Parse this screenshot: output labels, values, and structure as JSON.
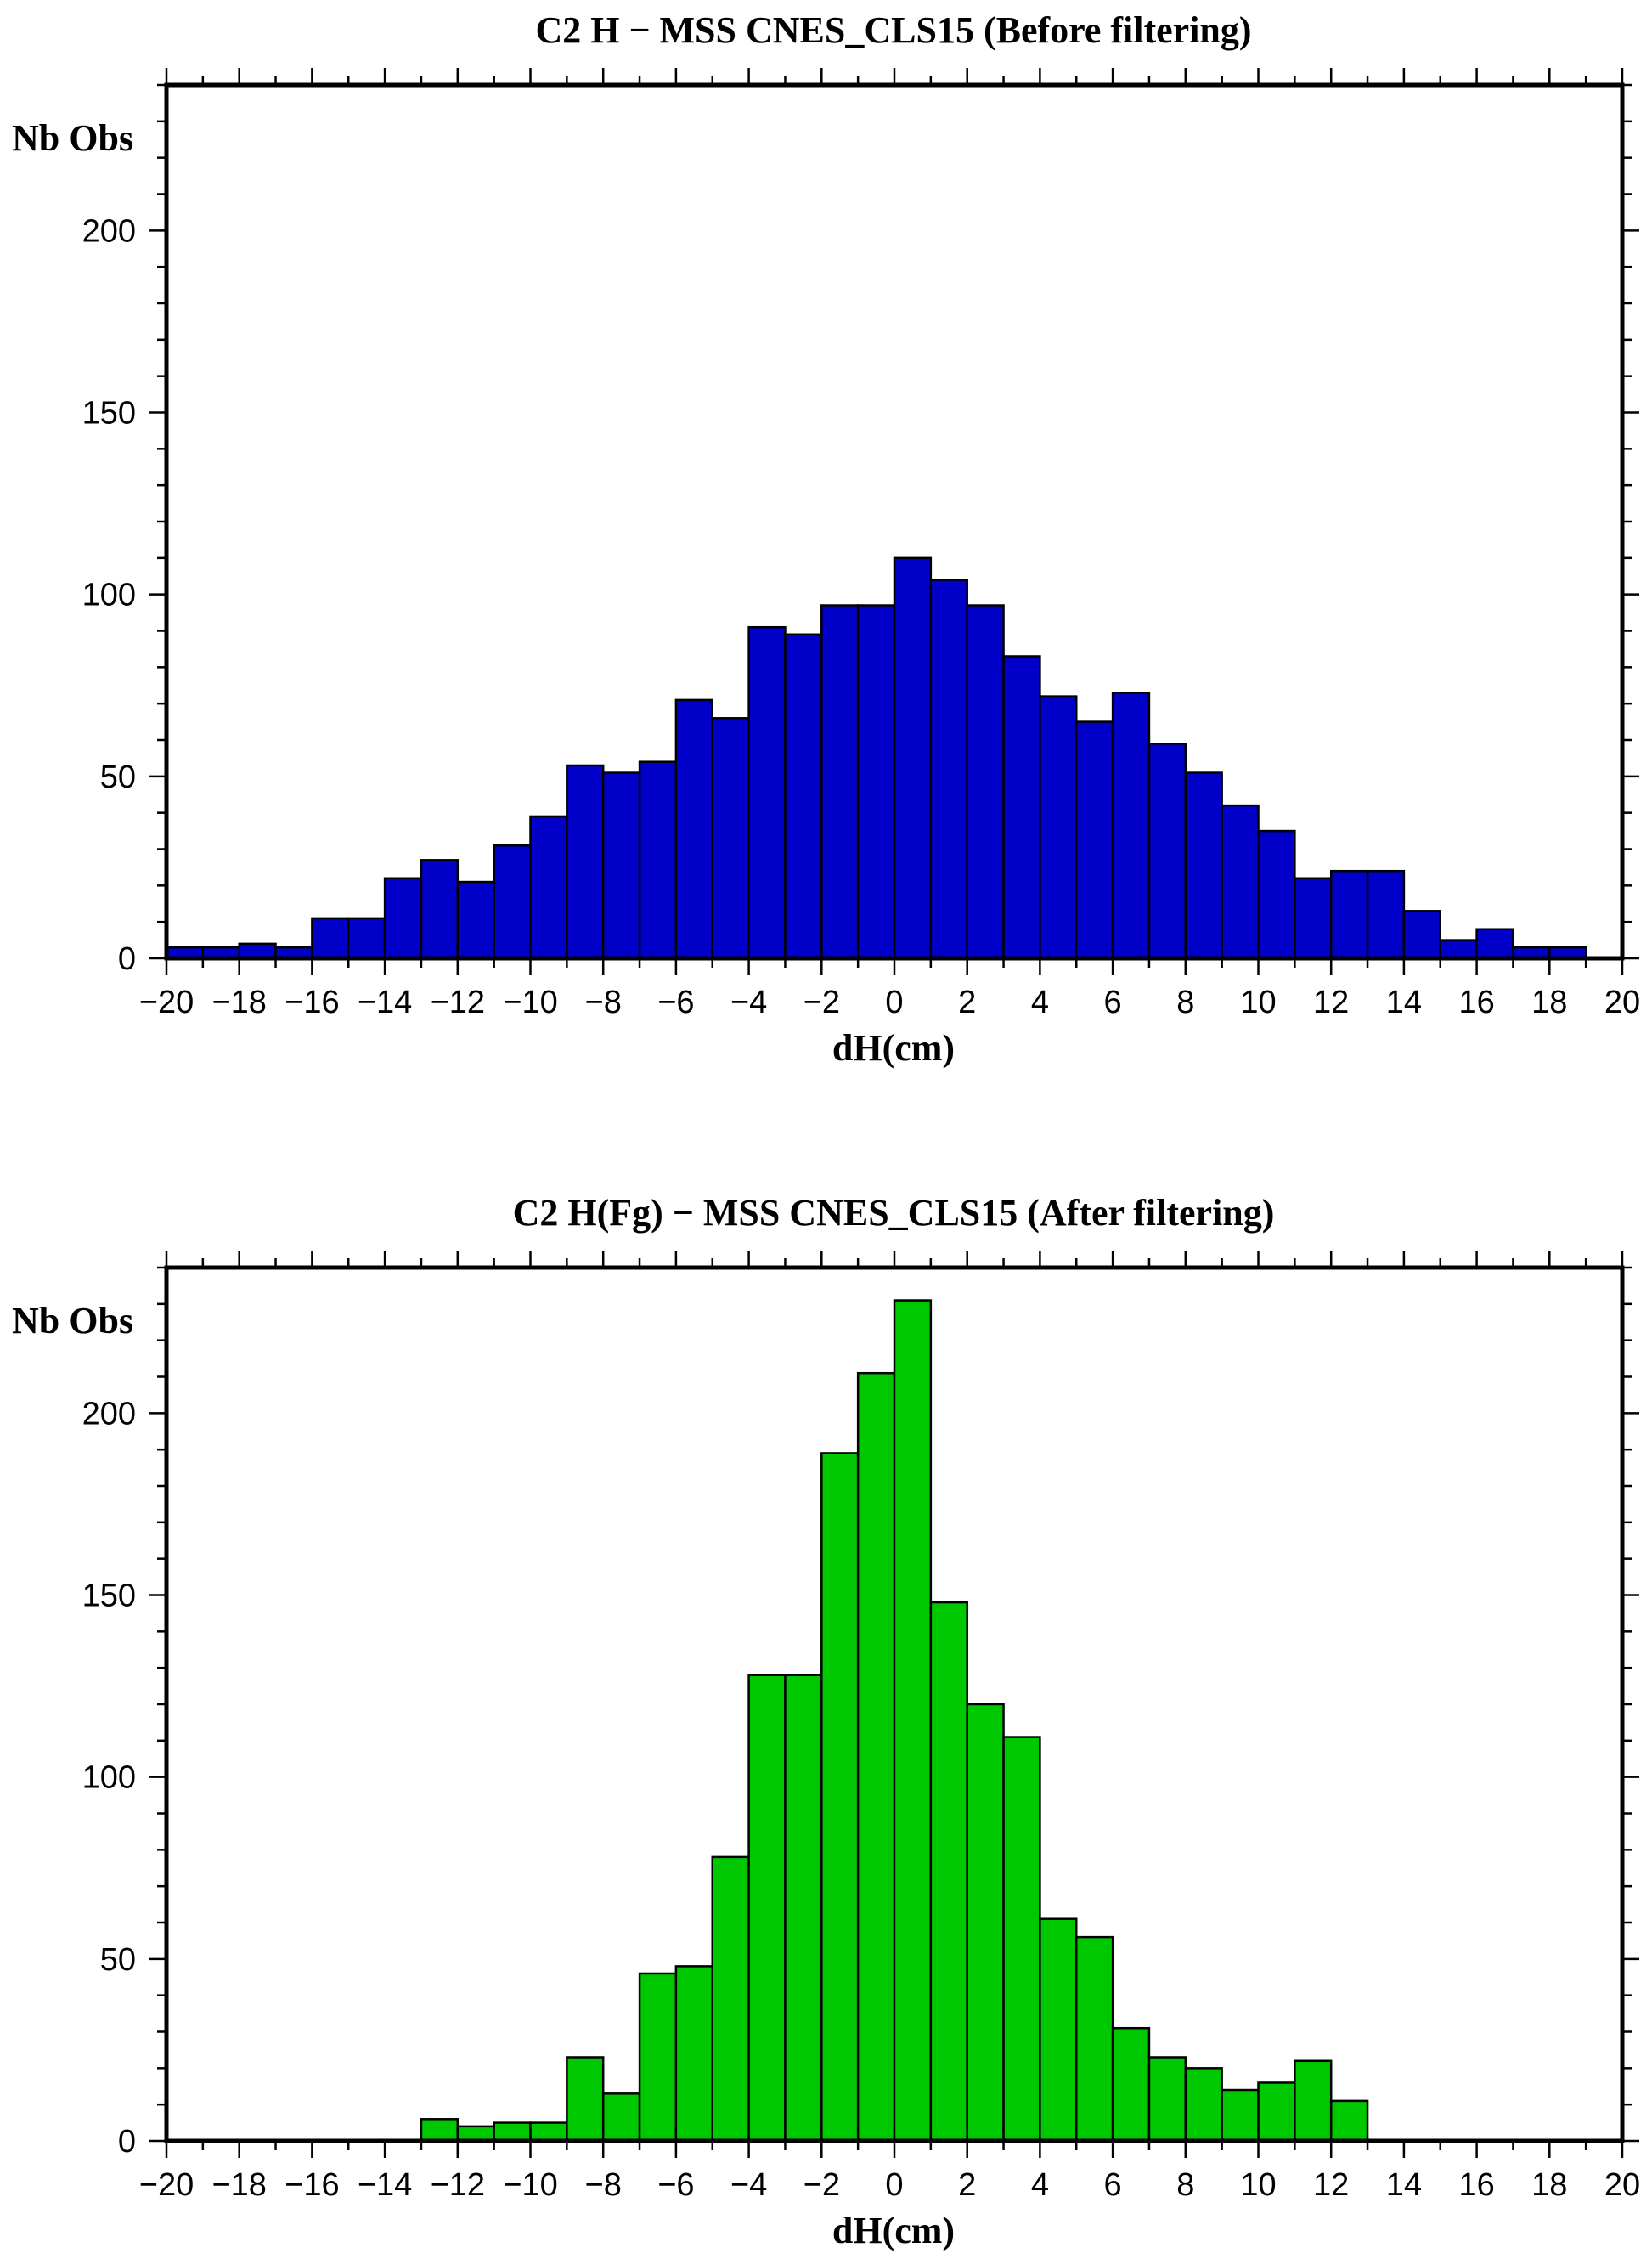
{
  "chart_data": [
    {
      "type": "bar",
      "title": "C2  H − MSS CNES_CLS15  (Before filtering)",
      "xlabel": "dH(cm)",
      "ylabel": "Nb Obs",
      "xlim": [
        -20,
        20
      ],
      "ylim": [
        0,
        240
      ],
      "bin_width": 1,
      "x": [
        -20,
        -19,
        -18,
        -17,
        -16,
        -15,
        -14,
        -13,
        -12,
        -11,
        -10,
        -9,
        -8,
        -7,
        -6,
        -5,
        -4,
        -3,
        -2,
        -1,
        0,
        1,
        2,
        3,
        4,
        5,
        6,
        7,
        8,
        9,
        10,
        11,
        12,
        13,
        14,
        15,
        16,
        17,
        18,
        19
      ],
      "values": [
        3,
        3,
        4,
        3,
        11,
        11,
        22,
        27,
        21,
        31,
        39,
        53,
        51,
        54,
        71,
        66,
        91,
        89,
        97,
        97,
        110,
        104,
        97,
        83,
        72,
        65,
        73,
        59,
        51,
        42,
        35,
        22,
        24,
        24,
        13,
        5,
        8,
        3,
        3,
        0
      ],
      "bar_color": "#0000c8",
      "x_ticks": [
        "−20",
        "−18",
        "−16",
        "−14",
        "−12",
        "−10",
        "−8",
        "−6",
        "−4",
        "−2",
        "0",
        "2",
        "4",
        "6",
        "8",
        "10",
        "12",
        "14",
        "16",
        "18",
        "20"
      ],
      "y_ticks": [
        "0",
        "50",
        "100",
        "150",
        "200"
      ],
      "grid": false
    },
    {
      "type": "bar",
      "title": "C2 H(Fg) − MSS CNES_CLS15  (After filtering)",
      "xlabel": "dH(cm)",
      "ylabel": "Nb Obs",
      "xlim": [
        -20,
        20
      ],
      "ylim": [
        0,
        240
      ],
      "bin_width": 1,
      "x": [
        -20,
        -19,
        -18,
        -17,
        -16,
        -15,
        -14,
        -13,
        -12,
        -11,
        -10,
        -9,
        -8,
        -7,
        -6,
        -5,
        -4,
        -3,
        -2,
        -1,
        0,
        1,
        2,
        3,
        4,
        5,
        6,
        7,
        8,
        9,
        10,
        11,
        12,
        13,
        14,
        15,
        16,
        17,
        18,
        19
      ],
      "values": [
        0,
        0,
        0,
        0,
        0,
        0,
        0,
        6,
        4,
        5,
        5,
        23,
        13,
        46,
        48,
        78,
        128,
        128,
        189,
        211,
        231,
        148,
        120,
        111,
        61,
        56,
        31,
        23,
        20,
        14,
        16,
        22,
        11,
        0,
        0,
        0,
        0,
        0,
        0,
        0
      ],
      "bar_color": "#00c800",
      "x_ticks": [
        "−20",
        "−18",
        "−16",
        "−14",
        "−12",
        "−10",
        "−8",
        "−6",
        "−4",
        "−2",
        "0",
        "2",
        "4",
        "6",
        "8",
        "10",
        "12",
        "14",
        "16",
        "18",
        "20"
      ],
      "y_ticks": [
        "0",
        "50",
        "100",
        "150",
        "200"
      ],
      "grid": false
    }
  ]
}
